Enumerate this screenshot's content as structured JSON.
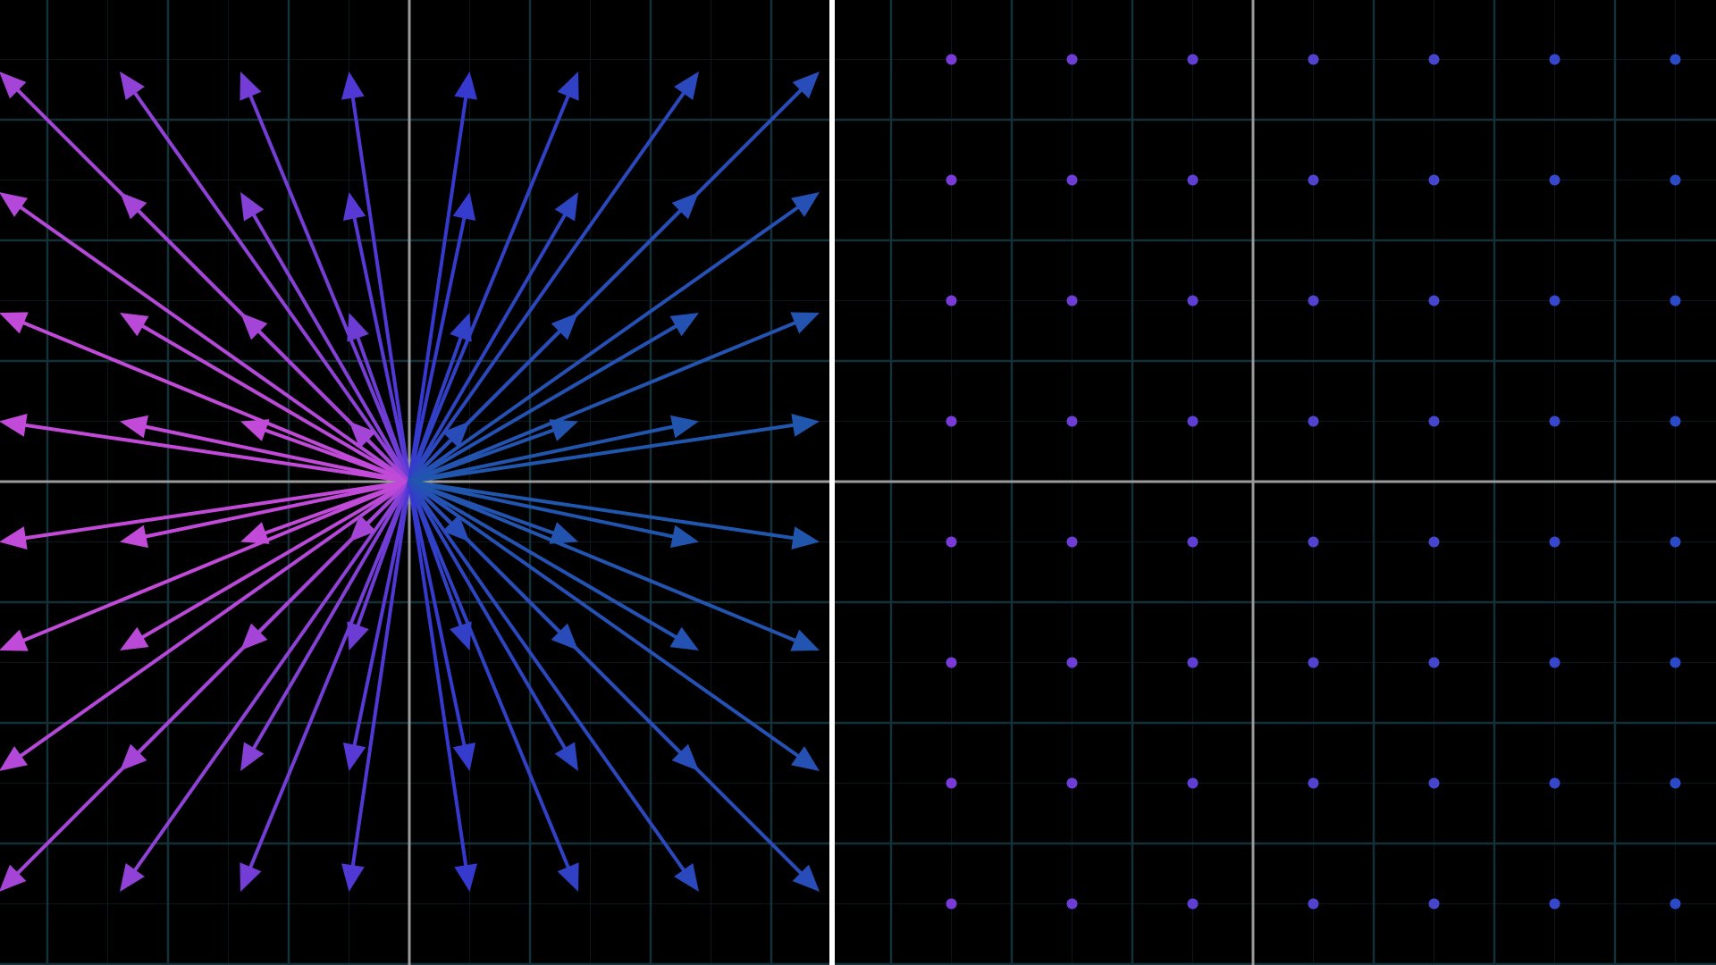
{
  "scene": {
    "background": "#000000",
    "grid_color": "#143038",
    "minor_grid_color": "#0a181c",
    "axis_color": "#9a9a9a",
    "divider_color": "#ffffff"
  },
  "left_panel": {
    "kind": "radial-vector-field",
    "description_none": "",
    "arrow_colors": {
      "left": "#c24ad8",
      "top": "#5a2fd0",
      "bottom": "#4a2ad0",
      "right": "#1e5aa8",
      "center": "#3a34d4"
    },
    "sample_x": [
      -3.4,
      -2.4,
      -1.4,
      -0.5,
      0.5,
      1.4,
      2.4,
      3.4
    ],
    "sample_y": [
      3.4,
      2.4,
      1.4,
      0.5,
      -0.5,
      -1.4,
      -2.4,
      -3.4
    ],
    "grid_range": [
      -4,
      4
    ]
  },
  "right_panel": {
    "kind": "zero-vector-field",
    "dot_colors": {
      "left": "#7a3ad8",
      "right": "#2a4ac8"
    },
    "sample_x": [
      -2.5,
      -1.5,
      -0.5,
      0.5,
      1.5,
      2.5,
      3.5
    ],
    "sample_y": [
      3.5,
      2.5,
      1.5,
      0.5,
      -0.5,
      -1.5,
      -2.5,
      -3.5
    ],
    "grid_range": [
      -4,
      4
    ]
  }
}
